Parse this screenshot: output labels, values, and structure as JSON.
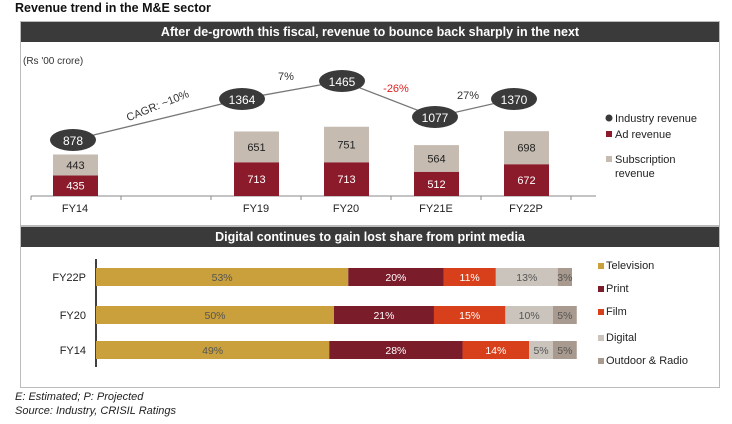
{
  "title": "Revenue trend in the M&E sector",
  "chart_data": [
    {
      "type": "bar",
      "stacked": true,
      "title": "After de-growth this fiscal, revenue to bounce back sharply in the next",
      "unit_label": "(Rs '00 crore)",
      "categories": [
        "FY14",
        "FY19",
        "FY20",
        "FY21E",
        "FY22P"
      ],
      "series": [
        {
          "name": "Ad revenue",
          "color": "#8b1a2a",
          "values": [
            435,
            713,
            713,
            512,
            672
          ]
        },
        {
          "name": "Subscription revenue",
          "color": "#c5bbb0",
          "values": [
            443,
            651,
            751,
            564,
            698
          ]
        }
      ],
      "line": {
        "name": "Industry revenue",
        "color": "#3a3a3a",
        "values": [
          878,
          1364,
          1465,
          1077,
          1370
        ]
      },
      "annotations": [
        {
          "text": "CAGR: ~10%",
          "color": "#333"
        },
        {
          "text": "7%",
          "color": "#333"
        },
        {
          "text": "-26%",
          "color": "#e02020"
        },
        {
          "text": "27%",
          "color": "#333"
        }
      ],
      "legend_position": "right",
      "grid": false
    },
    {
      "type": "bar",
      "orientation": "horizontal",
      "stacked": true,
      "percent": true,
      "title": "Digital continues to gain lost share from print media",
      "categories": [
        "FY22P",
        "FY20",
        "FY14"
      ],
      "series": [
        {
          "name": "Television",
          "color": "#c9a03c",
          "values": [
            53,
            50,
            49
          ]
        },
        {
          "name": "Print",
          "color": "#7a1c2a",
          "values": [
            20,
            21,
            28
          ]
        },
        {
          "name": "Film",
          "color": "#d8401c",
          "values": [
            11,
            15,
            14
          ]
        },
        {
          "name": "Digital",
          "color": "#cbc4bc",
          "values": [
            13,
            10,
            5
          ]
        },
        {
          "name": "Outdoor & Radio",
          "color": "#a89a8e",
          "values": [
            3,
            5,
            5
          ]
        }
      ],
      "legend_position": "right",
      "grid": false
    }
  ],
  "footnotes": [
    "E: Estimated; P: Projected",
    "Source: Industry, CRISIL Ratings"
  ]
}
